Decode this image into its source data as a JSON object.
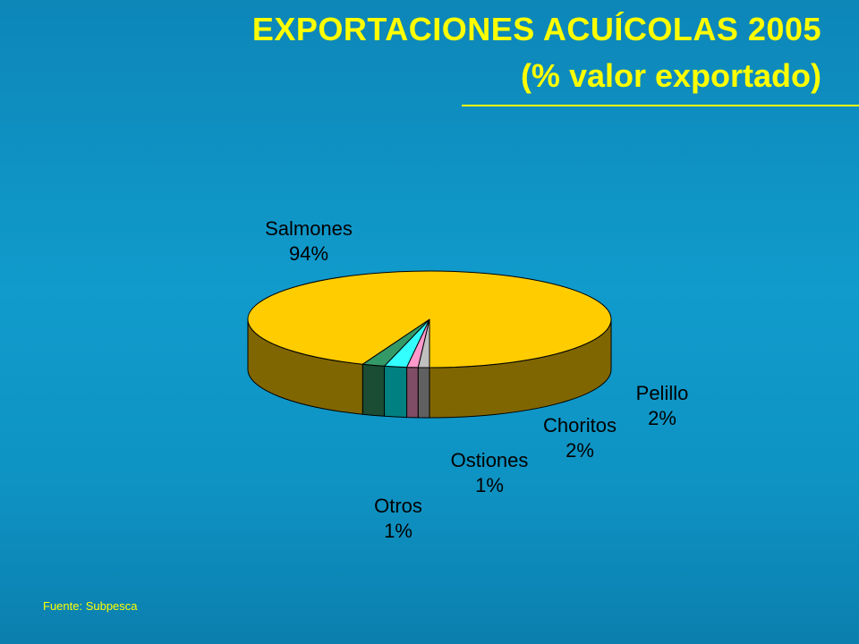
{
  "title": "EXPORTACIONES ACUÍCOLAS 2005",
  "subtitle": "(% valor exportado)",
  "source": "Fuente: Subpesca",
  "chart_data": {
    "type": "pie",
    "style": "3d",
    "title": "EXPORTACIONES ACUÍCOLAS 2005",
    "subtitle": "(% valor exportado)",
    "categories": [
      "Salmones",
      "Otros",
      "Ostiones",
      "Choritos",
      "Pelillo"
    ],
    "values": [
      94,
      1,
      1,
      2,
      2
    ],
    "value_labels": [
      "94%",
      "1%",
      "1%",
      "2%",
      "2%"
    ],
    "colors": [
      "#ffcc00",
      "#c0c0c0",
      "#ff99cc",
      "#33ffff",
      "#339966"
    ],
    "side_colors": [
      "#806600",
      "#606060",
      "#804d66",
      "#008080",
      "#1a4d33"
    ]
  }
}
